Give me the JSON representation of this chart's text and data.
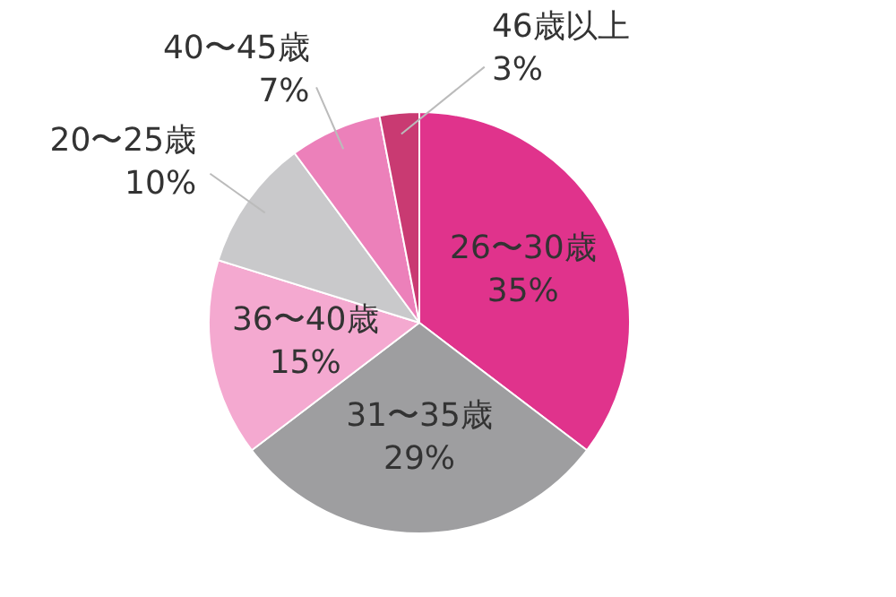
{
  "chart_data": {
    "type": "pie",
    "categories": [
      "26〜30歳",
      "31〜35歳",
      "36〜40歳",
      "20〜25歳",
      "40〜45歳",
      "46歳以上"
    ],
    "values": [
      35,
      29,
      15,
      10,
      7,
      3
    ],
    "value_labels": [
      "35%",
      "29%",
      "15%",
      "10%",
      "7%",
      "3%"
    ],
    "colors": [
      "#e0338c",
      "#9e9ea0",
      "#f4a9d0",
      "#c9c9cb",
      "#ec80ba",
      "#c93a72"
    ],
    "legend": false
  }
}
